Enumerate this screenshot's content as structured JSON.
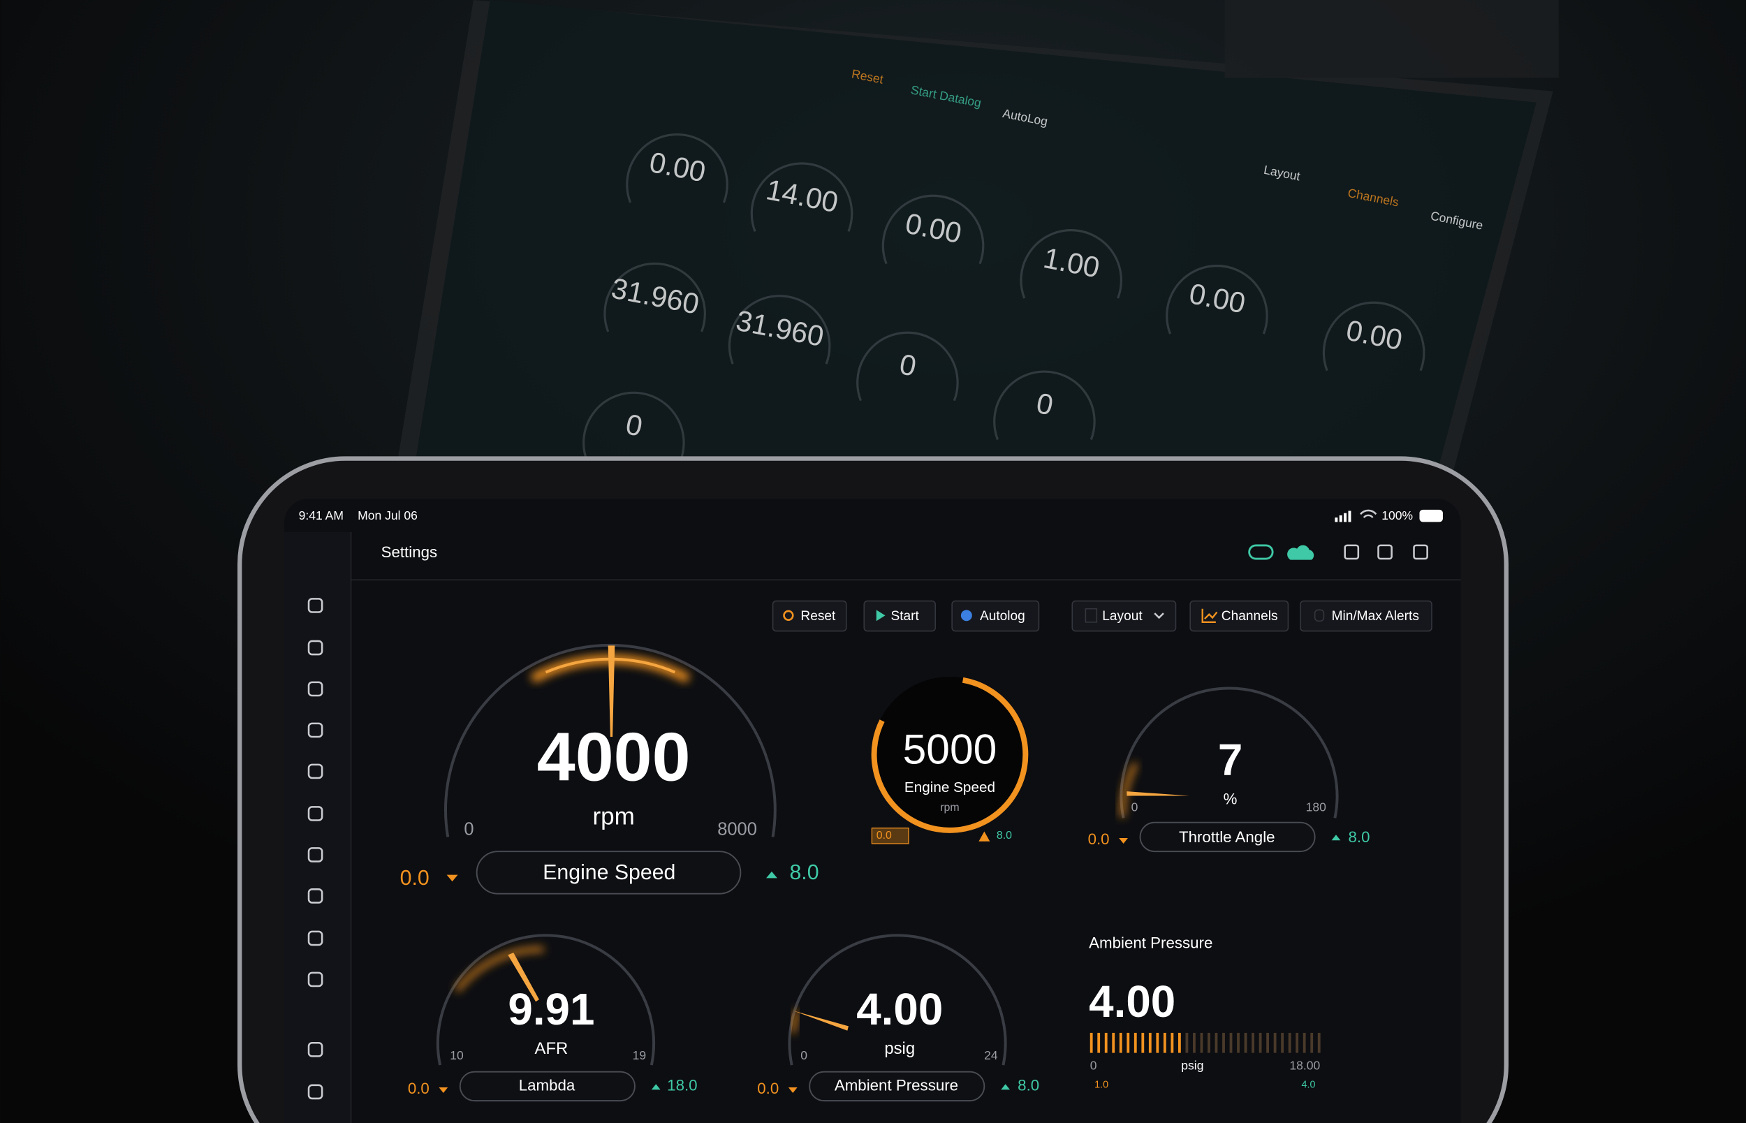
{
  "laptop": {
    "toolbar": [
      "Reset",
      "Start Datalog",
      "AutoLog"
    ],
    "panel": [
      "Layout",
      "Channels",
      "Configure"
    ],
    "gauges": [
      "0.00",
      "14.00",
      "0.00",
      "1.00",
      "0.00",
      "0.00",
      "31.960",
      "31.960",
      "0",
      "0",
      "0"
    ]
  },
  "status_bar": {
    "time": "9:41 AM",
    "date": "Mon Jul 06",
    "battery": "100%"
  },
  "header": {
    "title": "Settings"
  },
  "toolbar": {
    "buttons": [
      "Reset",
      "Start",
      "Autolog",
      "Layout",
      "Channels",
      "Min/Max Alerts"
    ]
  },
  "gauges": [
    {
      "value": "4000",
      "unit": "rpm",
      "min": "0",
      "max": "8000",
      "label": "Engine Speed",
      "low": "0.0",
      "high": "8.0"
    },
    {
      "value": "5000",
      "label": "Engine Speed",
      "unit": "rpm",
      "low": "0.0",
      "high": "8.0"
    },
    {
      "value": "7",
      "unit": "%",
      "min": "0",
      "max": "180",
      "label": "Throttle Angle",
      "low": "0.0",
      "high": "8.0"
    },
    {
      "value": "9.91",
      "unit": "AFR",
      "min": "10",
      "max": "19",
      "label": "Lambda",
      "low": "0.0",
      "high": "18.0"
    },
    {
      "value": "4.00",
      "unit": "psig",
      "min": "0",
      "max": "24",
      "label": "Ambient Pressure",
      "low": "0.0",
      "high": "8.0"
    },
    {
      "title": "Ambient Pressure",
      "value": "4.00",
      "unit": "psig",
      "min": "0",
      "max": "18.00",
      "low": "1.0",
      "high": "4.0"
    }
  ]
}
